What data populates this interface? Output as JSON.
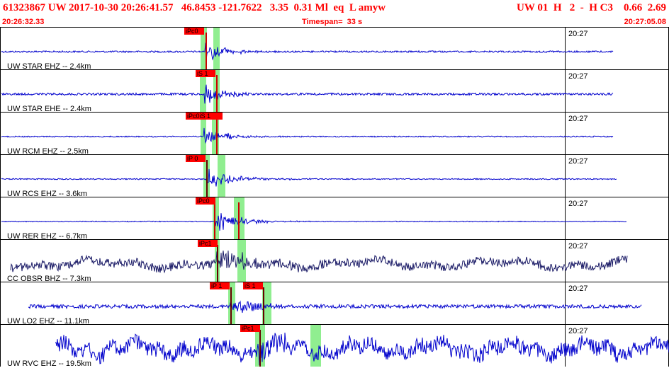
{
  "header": {
    "title_left": "61323867 UW 2017-10-30 20:26:41.57   46.8453 -121.7622   3.35  0.31 Ml  eq  L amyw",
    "title_right": "UW 01  H   2  -  H C3    0.66  2.69",
    "start_time": "20:26:32.33",
    "timespan": "Timespan=  33 s",
    "end_time": "20:27:05.08"
  },
  "colors": {
    "header_text": "#ff0000",
    "trace": "#0000cc",
    "trace_dark": "#1a1a66",
    "pick_box": "#ff0000",
    "pick_window": "#90ee90"
  },
  "panels": [
    {
      "label": "UW STAR EHZ -- 2.4km",
      "time": "20:27",
      "picks": [
        {
          "text": "iPc0"
        }
      ]
    },
    {
      "label": "UW STAR EHE -- 2.4km",
      "time": "20:27",
      "picks": [
        {
          "text": "iS 1"
        }
      ]
    },
    {
      "label": "UW RCM EHZ -- 2.5km",
      "time": "20:27",
      "picks": [
        {
          "text": "iPc0iS 1"
        }
      ]
    },
    {
      "label": "UW RCS EHZ -- 3.6km",
      "time": "20:27",
      "picks": [
        {
          "text": "iP 0"
        }
      ]
    },
    {
      "label": "UW RER EHZ -- 6.7km",
      "time": "20:27",
      "picks": [
        {
          "text": "iPc0"
        }
      ]
    },
    {
      "label": "CC OBSR BHZ -- 7.3km",
      "time": "20:27",
      "picks": [
        {
          "text": "iPc1"
        }
      ]
    },
    {
      "label": "UW LO2 EHZ -- 11.1km",
      "time": "20:27",
      "picks": [
        {
          "text": "iP 1"
        },
        {
          "text": "iS 1"
        }
      ]
    },
    {
      "label": "UW RVC EHZ -- 19.5km",
      "time": "20:27",
      "picks": [
        {
          "text": "iPc1"
        }
      ]
    }
  ]
}
